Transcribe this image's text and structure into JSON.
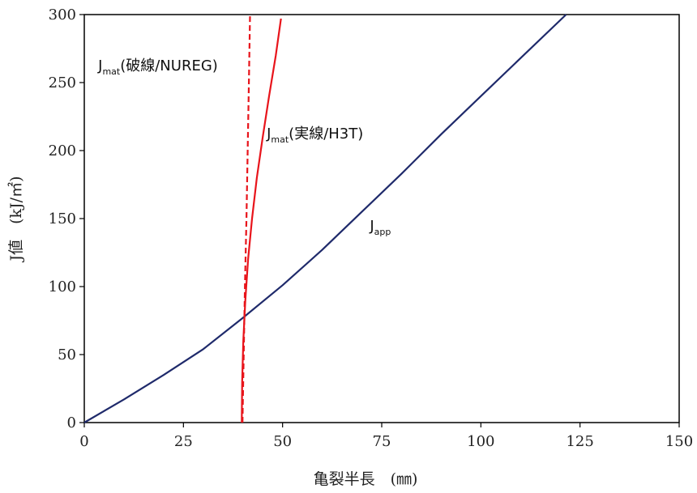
{
  "chart_data": {
    "type": "line",
    "xlabel": "亀裂半長　(㎜)",
    "ylabel": "J値　(kJ/㎡)",
    "xlim": [
      0,
      150
    ],
    "ylim": [
      0,
      300
    ],
    "xticks": [
      0,
      25,
      50,
      75,
      100,
      125,
      150
    ],
    "yticks": [
      0,
      50,
      100,
      150,
      200,
      250,
      300
    ],
    "grid": false,
    "legend": "none",
    "series": [
      {
        "name": "J_app",
        "color": "#1f2a6b",
        "dash": "solid",
        "x": [
          0,
          10,
          20,
          30,
          40,
          50,
          60,
          70,
          80,
          90,
          100,
          110,
          121.5
        ],
        "y": [
          0,
          17,
          35,
          54,
          77,
          101,
          127,
          155,
          183,
          212,
          240,
          268,
          300
        ]
      },
      {
        "name": "J_mat(破線/NUREG)",
        "color": "#e8141b",
        "dash": "dashed",
        "x": [
          39.9,
          40.2,
          40.5,
          40.9,
          41.2,
          41.5,
          41.8
        ],
        "y": [
          0,
          50,
          100,
          150,
          200,
          250,
          300
        ]
      },
      {
        "name": "J_mat(実線/H3T)",
        "color": "#e8141b",
        "dash": "solid",
        "x": [
          39.7,
          39.8,
          40.1,
          40.6,
          41.3,
          42.3,
          43.5,
          45.0,
          46.6,
          48.3,
          49.6
        ],
        "y": [
          0,
          30,
          60,
          90,
          120,
          150,
          180,
          210,
          240,
          270,
          297
        ]
      }
    ],
    "annotations": [
      {
        "main": "J",
        "sub": "mat",
        "rest": "(破線/NUREG)",
        "x": 3.5,
        "y": 259
      },
      {
        "main": "J",
        "sub": "mat",
        "rest": "(実線/H3T)",
        "x": 46,
        "y": 209
      },
      {
        "main": "J",
        "sub": "app",
        "rest": "",
        "x": 72,
        "y": 141
      }
    ]
  }
}
